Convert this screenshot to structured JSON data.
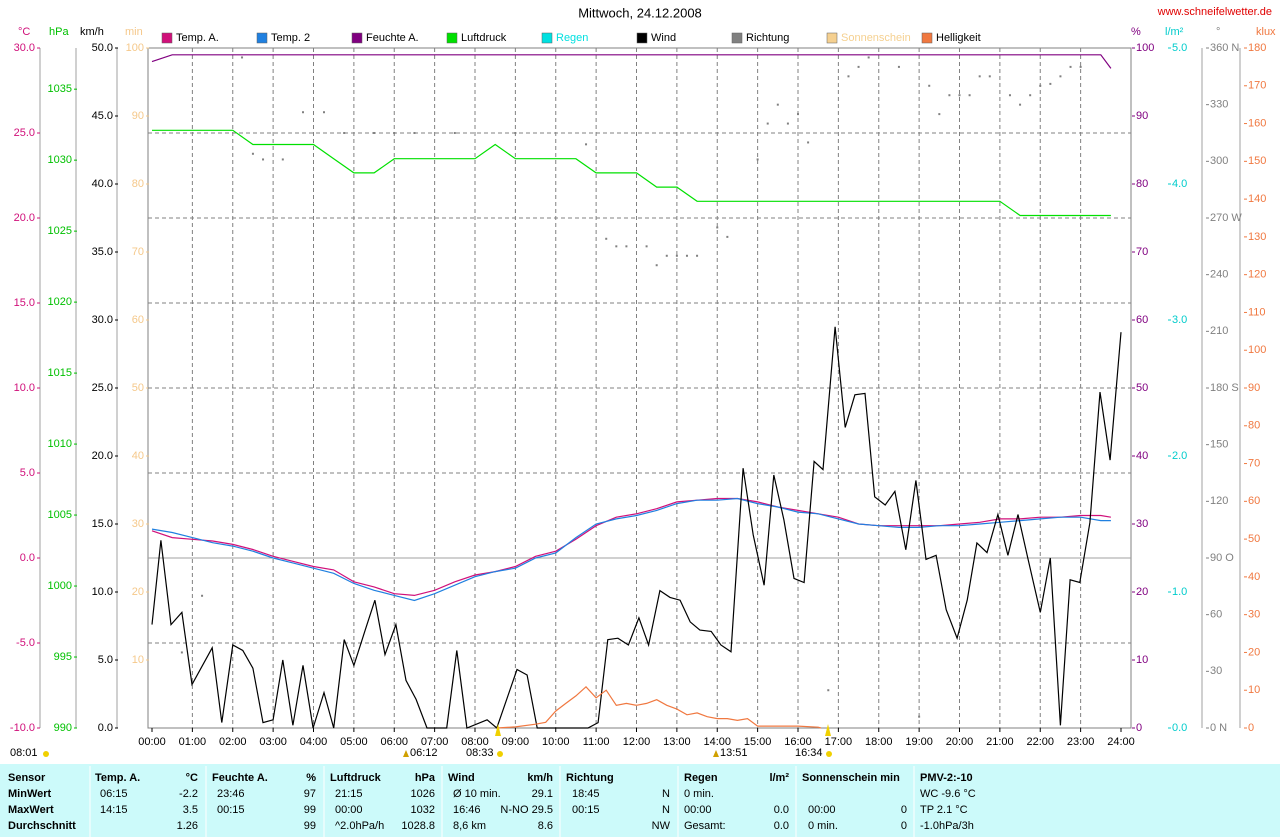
{
  "chart_data": {
    "type": "line",
    "title": "Mittwoch, 24.12.2008",
    "source": "www.schneifelwetter.de",
    "grid": true,
    "xlim": [
      0,
      24
    ],
    "xticks": [
      {
        "value": 0,
        "label": "00:00"
      },
      {
        "value": 1,
        "label": "01:00"
      },
      {
        "value": 2,
        "label": "02:00"
      },
      {
        "value": 3,
        "label": "03:00"
      },
      {
        "value": 4,
        "label": "04:00"
      },
      {
        "value": 5,
        "label": "05:00"
      },
      {
        "value": 6,
        "label": "06:00"
      },
      {
        "value": 7,
        "label": "07:00"
      },
      {
        "value": 8,
        "label": "08:00"
      },
      {
        "value": 9,
        "label": "09:00"
      },
      {
        "value": 10,
        "label": "10:00"
      },
      {
        "value": 11,
        "label": "11:00"
      },
      {
        "value": 12,
        "label": "12:00"
      },
      {
        "value": 13,
        "label": "13:00"
      },
      {
        "value": 14,
        "label": "14:00"
      },
      {
        "value": 15,
        "label": "15:00"
      },
      {
        "value": 16,
        "label": "16:00"
      },
      {
        "value": 17,
        "label": "17:00"
      },
      {
        "value": 18,
        "label": "18:00"
      },
      {
        "value": 19,
        "label": "19:00"
      },
      {
        "value": 20,
        "label": "20:00"
      },
      {
        "value": 21,
        "label": "21:00"
      },
      {
        "value": 22,
        "label": "22:00"
      },
      {
        "value": 23,
        "label": "23:00"
      },
      {
        "value": 24,
        "label": "24:00"
      }
    ],
    "axes": {
      "temp": {
        "unit": "°C",
        "color": "#d0107a",
        "lim": [
          -10,
          30
        ],
        "ticks": [
          {
            "value": -10,
            "label": "-10.0"
          },
          {
            "value": -5,
            "label": "-5.0"
          },
          {
            "value": 0,
            "label": "0.0"
          },
          {
            "value": 5,
            "label": "5.0"
          },
          {
            "value": 10,
            "label": "10.0"
          },
          {
            "value": 15,
            "label": "15.0"
          },
          {
            "value": 20,
            "label": "20.0"
          },
          {
            "value": 25,
            "label": "25.0"
          },
          {
            "value": 30,
            "label": "30.0"
          }
        ]
      },
      "pressure": {
        "unit": "hPa",
        "color": "#00c000",
        "lim": [
          990,
          1037.9
        ],
        "ticks": [
          990,
          995,
          1000,
          1005,
          1010,
          1015,
          1020,
          1025,
          1030,
          1035
        ]
      },
      "wind": {
        "unit": "km/h",
        "color": "#000000",
        "lim": [
          0,
          50
        ],
        "ticks": [
          {
            "value": 0,
            "label": "0.0"
          },
          {
            "value": 5,
            "label": "5.0"
          },
          {
            "value": 10,
            "label": "10.0"
          },
          {
            "value": 15,
            "label": "15.0"
          },
          {
            "value": 20,
            "label": "20.0"
          },
          {
            "value": 25,
            "label": "25.0"
          },
          {
            "value": 30,
            "label": "30.0"
          },
          {
            "value": 35,
            "label": "35.0"
          },
          {
            "value": 40,
            "label": "40.0"
          },
          {
            "value": 45,
            "label": "45.0"
          },
          {
            "value": 50,
            "label": "50.0"
          }
        ]
      },
      "sun": {
        "unit": "min",
        "color": "#f5c88a",
        "lim": [
          0,
          100
        ],
        "ticks": [
          10,
          20,
          30,
          40,
          50,
          60,
          70,
          80,
          90,
          100
        ]
      },
      "humidity": {
        "unit": "%",
        "color": "#800080",
        "lim": [
          0,
          100
        ],
        "ticks": [
          0,
          10,
          20,
          30,
          40,
          50,
          60,
          70,
          80,
          90,
          100
        ]
      },
      "rain": {
        "unit": "l/m²",
        "color": "#00cccc",
        "lim": [
          0,
          5
        ],
        "ticks": [
          {
            "value": 0,
            "label": "0.0"
          },
          {
            "value": 1,
            "label": "1.0"
          },
          {
            "value": 2,
            "label": "2.0"
          },
          {
            "value": 3,
            "label": "3.0"
          },
          {
            "value": 4,
            "label": "4.0"
          },
          {
            "value": 5,
            "label": "5.0"
          }
        ]
      },
      "direction": {
        "unit": "°",
        "color": "#808080",
        "lim": [
          0,
          360
        ],
        "ticks": [
          {
            "value": 0,
            "label": "0 N"
          },
          30,
          60,
          {
            "value": 90,
            "label": "90 O"
          },
          120,
          150,
          {
            "value": 180,
            "label": "180 S"
          },
          210,
          240,
          {
            "value": 270,
            "label": "270 W"
          },
          300,
          330,
          {
            "value": 360,
            "label": "360 N"
          }
        ]
      },
      "lux": {
        "unit": "klux",
        "color": "#f07840",
        "lim": [
          0,
          180
        ],
        "ticks": [
          0,
          10,
          20,
          30,
          40,
          50,
          60,
          70,
          80,
          90,
          100,
          110,
          120,
          130,
          140,
          150,
          160,
          170,
          180
        ]
      }
    },
    "x": [
      0,
      0.5,
      1,
      1.5,
      2,
      2.5,
      3,
      3.5,
      4,
      4.5,
      5,
      5.5,
      6,
      6.5,
      7,
      7.5,
      8,
      8.5,
      9,
      9.5,
      10,
      10.5,
      11,
      11.5,
      12,
      12.5,
      13,
      13.5,
      14,
      14.5,
      15,
      15.5,
      16,
      16.5,
      17,
      17.5,
      18,
      18.5,
      19,
      19.5,
      20,
      20.5,
      21,
      21.5,
      22,
      22.5,
      23,
      23.5,
      23.75
    ],
    "series": [
      {
        "name": "Temp. A.",
        "color": "#d0107a",
        "axis": "temp",
        "type": "line",
        "values": [
          1.6,
          1.2,
          1.1,
          1.0,
          0.8,
          0.5,
          0.1,
          -0.2,
          -0.5,
          -0.7,
          -1.4,
          -1.7,
          -2.1,
          -2.2,
          -1.9,
          -1.4,
          -1.0,
          -0.8,
          -0.5,
          0.1,
          0.4,
          1.1,
          1.9,
          2.4,
          2.6,
          2.9,
          3.3,
          3.4,
          3.5,
          3.5,
          3.3,
          3.0,
          2.8,
          2.6,
          2.4,
          2.0,
          1.9,
          1.9,
          1.9,
          1.9,
          2.0,
          2.1,
          2.3,
          2.3,
          2.4,
          2.4,
          2.5,
          2.5,
          2.4
        ]
      },
      {
        "name": "Temp. 2",
        "color": "#2080e0",
        "axis": "temp",
        "type": "line",
        "values": [
          1.7,
          1.5,
          1.2,
          0.9,
          0.7,
          0.4,
          0.0,
          -0.3,
          -0.6,
          -0.9,
          -1.5,
          -1.9,
          -2.2,
          -2.5,
          -2.1,
          -1.6,
          -1.1,
          -0.8,
          -0.6,
          0.0,
          0.3,
          1.2,
          2.0,
          2.3,
          2.5,
          2.8,
          3.2,
          3.4,
          3.4,
          3.5,
          3.2,
          3.0,
          2.7,
          2.6,
          2.3,
          2.0,
          1.9,
          1.8,
          1.8,
          1.9,
          1.9,
          2.0,
          2.1,
          2.2,
          2.3,
          2.4,
          2.4,
          2.2,
          2.2
        ]
      },
      {
        "name": "Feuchte A.",
        "color": "#800080",
        "axis": "humidity",
        "type": "line",
        "values": [
          98,
          99,
          99,
          99,
          99,
          99,
          99,
          99,
          99,
          99,
          99,
          99,
          99,
          99,
          99,
          99,
          99,
          99,
          99,
          99,
          99,
          99,
          99,
          99,
          99,
          99,
          99,
          99,
          99,
          99,
          99,
          99,
          99,
          99,
          99,
          99,
          99,
          99,
          99,
          99,
          99,
          99,
          99,
          99,
          99,
          99,
          99,
          99,
          97
        ]
      },
      {
        "name": "Luftdruck",
        "color": "#00e000",
        "axis": "pressure",
        "type": "line",
        "values": [
          1032.1,
          1032.1,
          1032.1,
          1032.1,
          1032.1,
          1031.1,
          1031.1,
          1031.1,
          1031.1,
          1030.1,
          1029.1,
          1029.1,
          1030.1,
          1030.1,
          1030.1,
          1030.1,
          1030.1,
          1031.1,
          1030.1,
          1030.1,
          1030.1,
          1030.1,
          1029.1,
          1029.1,
          1029.1,
          1028.1,
          1028.1,
          1027.1,
          1027.1,
          1027.1,
          1027.1,
          1027.1,
          1027.1,
          1027.1,
          1027.1,
          1027.1,
          1027.1,
          1027.1,
          1027.1,
          1027.1,
          1027.1,
          1027.1,
          1027.1,
          1026.1,
          1026.1,
          1026.1,
          1026.1,
          1026.1,
          1026.1
        ]
      },
      {
        "name": "Regen",
        "color": "#00e0e0",
        "axis": "rain",
        "type": "line"
      },
      {
        "name": "Wind",
        "color": "#000000",
        "axis": "wind",
        "type": "line",
        "x": [
          0,
          0.22,
          0.47,
          0.74,
          0.99,
          1.49,
          1.73,
          2,
          2.25,
          2.5,
          2.75,
          3,
          3.24,
          3.49,
          3.74,
          3.99,
          4.26,
          4.5,
          4.76,
          5,
          5.28,
          5.52,
          5.77,
          6.04,
          6.29,
          6.54,
          6.81,
          7.3,
          7.55,
          7.8,
          8.3,
          8.54,
          9.04,
          9.29,
          9.54,
          10.8,
          11.05,
          11.29,
          11.54,
          11.8,
          12.06,
          12.3,
          12.58,
          12.83,
          13.08,
          13.33,
          13.57,
          13.85,
          14.09,
          14.34,
          14.64,
          14.89,
          15.16,
          15.4,
          15.65,
          15.9,
          16.15,
          16.4,
          16.62,
          16.92,
          17.17,
          17.41,
          17.66,
          17.9,
          18.16,
          18.4,
          18.67,
          18.92,
          19.17,
          19.42,
          19.67,
          19.94,
          20.19,
          20.43,
          20.68,
          20.95,
          21.2,
          21.45,
          21.7,
          22,
          22.25,
          22.5,
          22.74,
          22.98,
          23.23,
          23.48,
          23.73,
          24
        ],
        "values": [
          7.6,
          13.8,
          7.6,
          8.5,
          3.2,
          5.9,
          0.4,
          6.1,
          5.7,
          4.4,
          0.4,
          0.6,
          5.0,
          0.2,
          4.6,
          0,
          2.6,
          0,
          6.5,
          4.6,
          7.2,
          9.4,
          5.4,
          7.6,
          3.5,
          2.1,
          0,
          0,
          5.7,
          0,
          0.6,
          0,
          4.3,
          3.9,
          0,
          0,
          0.4,
          6.5,
          6.6,
          6.1,
          8.1,
          6.1,
          10.1,
          9.6,
          9.4,
          7.8,
          7.2,
          7.1,
          6.1,
          5.6,
          19.1,
          14.2,
          10.5,
          18.6,
          15.3,
          11.0,
          10.7,
          19.6,
          19.0,
          29.5,
          22.1,
          24.5,
          24.6,
          17.0,
          16.4,
          17.4,
          13.1,
          18.2,
          12.4,
          12.7,
          8.7,
          6.6,
          9.4,
          13.6,
          12.9,
          15.7,
          12.7,
          15.7,
          12.4,
          8.5,
          12.5,
          0.2,
          10.9,
          10.7,
          15.1,
          24.7,
          19.7,
          29.1
        ]
      },
      {
        "name": "Richtung",
        "color": "#808080",
        "axis": "direction",
        "type": "scatter",
        "x": [
          0.74,
          1.24,
          2.23,
          2.5,
          2.75,
          3.24,
          3.74,
          4.26,
          4.76,
          5.5,
          6,
          6.5,
          7.5,
          9,
          10.75,
          11.25,
          11.5,
          11.75,
          12.25,
          12.5,
          12.75,
          13,
          13.25,
          13.5,
          14,
          14.25,
          15,
          15.25,
          15.5,
          15.75,
          16,
          16.25,
          16.75,
          17.25,
          17.5,
          17.75,
          18.5,
          19,
          19.25,
          19.5,
          19.75,
          20,
          20.25,
          20.5,
          20.75,
          21.25,
          21.5,
          21.75,
          22,
          22.25,
          22.5,
          22.75,
          23
        ],
        "values": [
          40,
          70,
          355,
          304,
          301,
          301,
          326,
          326,
          315,
          315,
          315,
          315,
          315,
          315,
          309,
          259,
          255,
          255,
          255,
          245,
          250,
          250,
          250,
          250,
          265,
          260,
          301,
          320,
          330,
          320,
          325,
          310,
          20,
          345,
          350,
          355,
          350,
          6,
          340,
          325,
          335,
          335,
          335,
          345,
          345,
          335,
          330,
          335,
          340,
          341,
          345,
          350,
          350
        ]
      },
      {
        "name": "Sonnenschein",
        "color": "#f5d090",
        "axis": "sun",
        "type": "line"
      },
      {
        "name": "Helligkeit",
        "color": "#f07840",
        "axis": "lux",
        "type": "line",
        "x": [
          8.54,
          9,
          9.5,
          9.75,
          10,
          10.25,
          10.5,
          10.75,
          11,
          11.25,
          11.5,
          11.75,
          12,
          12.25,
          12.5,
          12.75,
          13,
          13.25,
          13.5,
          13.75,
          14,
          14.25,
          14.5,
          14.75,
          15,
          15.5,
          16,
          16.5,
          16.57
        ],
        "values": [
          0,
          0.3,
          1.0,
          1.5,
          4.5,
          6.5,
          8.5,
          10.9,
          8.0,
          10.0,
          6.0,
          6.5,
          6.0,
          6.5,
          7.5,
          6.0,
          5.0,
          3.5,
          4.0,
          3.0,
          2.5,
          2.5,
          2.0,
          2.5,
          0.5,
          0.5,
          0.5,
          0.2,
          0
        ]
      }
    ],
    "annotations": [
      "08:01",
      "06:12",
      "08:33",
      "13:51",
      "16:34"
    ]
  },
  "table": {
    "header": [
      "Sensor",
      "Temp. A.",
      "°C",
      "Feuchte A.",
      "%",
      "Luftdruck",
      "hPa",
      "Wind",
      "km/h",
      "Richtung",
      null,
      "Regen",
      "l/m²",
      "Sonnenschein min",
      null,
      "PMV-2:-10"
    ],
    "rows": [
      [
        "MinWert",
        "06:15",
        "-2.2",
        "23:46",
        "97",
        "21:15",
        "1026",
        "Ø 10 min.",
        "29.1",
        "18:45",
        "N",
        "0 min.",
        null,
        null,
        null,
        "WC -9.6 °C"
      ],
      [
        "MaxWert",
        "14:15",
        "3.5",
        "00:15",
        "99",
        "00:00",
        "1032",
        "16:46",
        "N-NO 29.5",
        "00:15",
        "N",
        "00:00",
        "0.0",
        "00:00",
        "0",
        "TP 2.1 °C"
      ],
      [
        "Durchschnitt",
        null,
        "1.26",
        null,
        "99",
        "^2.0hPa/h",
        "1028.8",
        "8,6 km",
        "8.6",
        null,
        "NW",
        "Gesamt:",
        "0.0",
        "0 min.",
        "0",
        "-1.0hPa/3h"
      ]
    ]
  }
}
